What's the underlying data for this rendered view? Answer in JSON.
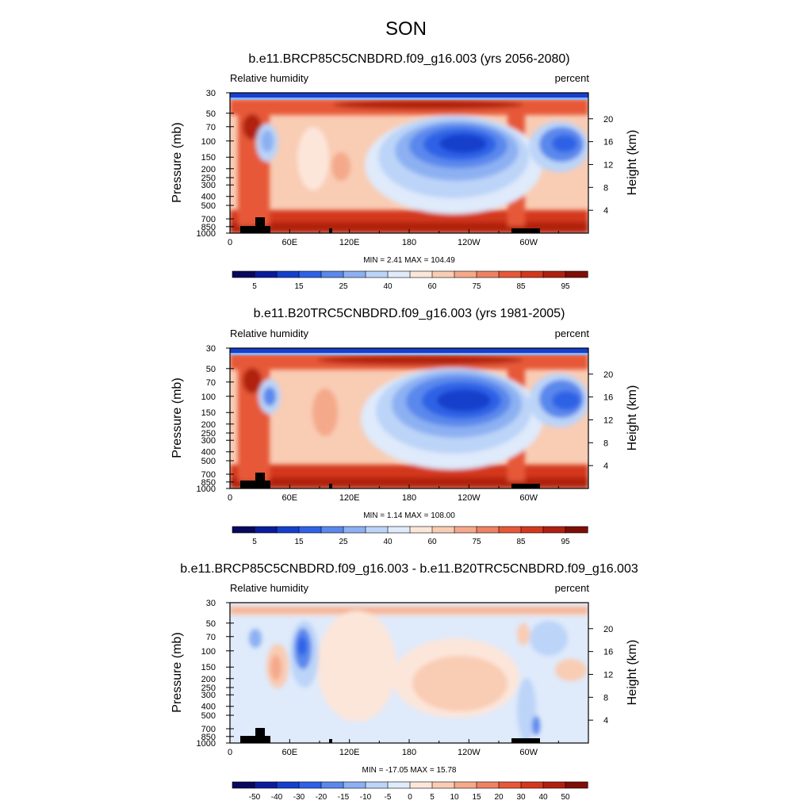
{
  "main_title": "SON",
  "chart_data": [
    {
      "type": "heatmap",
      "title": "b.e11.BRCP85C5CNBDRD.f09_g16.003 (yrs 2056-2080)",
      "variable_label": "Relative humidity",
      "units_label": "percent",
      "xlabel": "",
      "ylabel": "Pressure (mb)",
      "ylabel_right": "Height (km)",
      "x_ticks": [
        "0",
        "60E",
        "120E",
        "180",
        "120W",
        "60W"
      ],
      "x_tick_values": [
        0,
        60,
        120,
        180,
        240,
        300
      ],
      "xlim": [
        0,
        360
      ],
      "y_ticks": [
        "30",
        "50",
        "70",
        "100",
        "150",
        "200",
        "250",
        "300",
        "400",
        "500",
        "700",
        "850",
        "1000"
      ],
      "y_tick_values": [
        30,
        50,
        70,
        100,
        150,
        200,
        250,
        300,
        400,
        500,
        700,
        850,
        1000
      ],
      "ylim": [
        1000,
        30
      ],
      "y2_ticks": [
        "4",
        "8",
        "12",
        "16",
        "20"
      ],
      "y2_tick_values": [
        4,
        8,
        12,
        16,
        20
      ],
      "min_text": "MIN =   2.41  MAX = 104.49",
      "min": 2.41,
      "max": 104.49,
      "colorbar_labels": [
        "5",
        "15",
        "25",
        "40",
        "60",
        "75",
        "85",
        "95"
      ],
      "colorbar_colors": [
        "#08085c",
        "#0a1c9c",
        "#1640cc",
        "#2e62e6",
        "#5a88ec",
        "#8cb0f2",
        "#bcd4f8",
        "#dfeafb",
        "#fce6da",
        "#f9ccb4",
        "#f4a98a",
        "#ee8264",
        "#e65838",
        "#d4381c",
        "#b02010",
        "#7e0e06"
      ]
    },
    {
      "type": "heatmap",
      "title": "b.e11.B20TRC5CNBDRD.f09_g16.003 (yrs 1981-2005)",
      "variable_label": "Relative humidity",
      "units_label": "percent",
      "xlabel": "",
      "ylabel": "Pressure (mb)",
      "ylabel_right": "Height (km)",
      "x_ticks": [
        "0",
        "60E",
        "120E",
        "180",
        "120W",
        "60W"
      ],
      "x_tick_values": [
        0,
        60,
        120,
        180,
        240,
        300
      ],
      "xlim": [
        0,
        360
      ],
      "y_ticks": [
        "30",
        "50",
        "70",
        "100",
        "150",
        "200",
        "250",
        "300",
        "400",
        "500",
        "700",
        "850",
        "1000"
      ],
      "y_tick_values": [
        30,
        50,
        70,
        100,
        150,
        200,
        250,
        300,
        400,
        500,
        700,
        850,
        1000
      ],
      "ylim": [
        1000,
        30
      ],
      "y2_ticks": [
        "4",
        "8",
        "12",
        "16",
        "20"
      ],
      "y2_tick_values": [
        4,
        8,
        12,
        16,
        20
      ],
      "min_text": "MIN =   1.14  MAX = 108.00",
      "min": 1.14,
      "max": 108.0,
      "colorbar_labels": [
        "5",
        "15",
        "25",
        "40",
        "60",
        "75",
        "85",
        "95"
      ],
      "colorbar_colors": [
        "#08085c",
        "#0a1c9c",
        "#1640cc",
        "#2e62e6",
        "#5a88ec",
        "#8cb0f2",
        "#bcd4f8",
        "#dfeafb",
        "#fce6da",
        "#f9ccb4",
        "#f4a98a",
        "#ee8264",
        "#e65838",
        "#d4381c",
        "#b02010",
        "#7e0e06"
      ]
    },
    {
      "type": "heatmap",
      "title": "b.e11.BRCP85C5CNBDRD.f09_g16.003 - b.e11.B20TRC5CNBDRD.f09_g16.003",
      "variable_label": "Relative humidity",
      "units_label": "percent",
      "xlabel": "",
      "ylabel": "Pressure (mb)",
      "ylabel_right": "Height (km)",
      "x_ticks": [
        "0",
        "60E",
        "120E",
        "180",
        "120W",
        "60W"
      ],
      "x_tick_values": [
        0,
        60,
        120,
        180,
        240,
        300
      ],
      "xlim": [
        0,
        360
      ],
      "y_ticks": [
        "30",
        "50",
        "70",
        "100",
        "150",
        "200",
        "250",
        "300",
        "400",
        "500",
        "700",
        "850",
        "1000"
      ],
      "y_tick_values": [
        30,
        50,
        70,
        100,
        150,
        200,
        250,
        300,
        400,
        500,
        700,
        850,
        1000
      ],
      "ylim": [
        1000,
        30
      ],
      "y2_ticks": [
        "4",
        "8",
        "12",
        "16",
        "20"
      ],
      "y2_tick_values": [
        4,
        8,
        12,
        16,
        20
      ],
      "min_text": "MIN = -17.05  MAX =  15.78",
      "min": -17.05,
      "max": 15.78,
      "colorbar_labels": [
        "-50",
        "-40",
        "-30",
        "-20",
        "-15",
        "-10",
        "-5",
        "0",
        "5",
        "10",
        "15",
        "20",
        "30",
        "40",
        "50"
      ],
      "colorbar_colors": [
        "#08085c",
        "#0a1c9c",
        "#1640cc",
        "#2e62e6",
        "#5a88ec",
        "#8cb0f2",
        "#bcd4f8",
        "#dfeafb",
        "#fce6da",
        "#f9ccb4",
        "#f4a98a",
        "#ee8264",
        "#e65838",
        "#d4381c",
        "#b02010",
        "#7e0e06"
      ]
    }
  ]
}
